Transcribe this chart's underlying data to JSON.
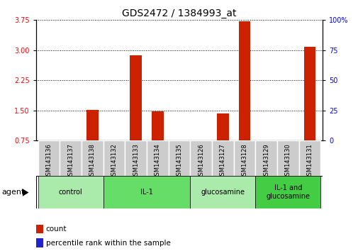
{
  "title": "GDS2472 / 1384993_at",
  "samples": [
    "GSM143136",
    "GSM143137",
    "GSM143138",
    "GSM143132",
    "GSM143133",
    "GSM143134",
    "GSM143135",
    "GSM143126",
    "GSM143127",
    "GSM143128",
    "GSM143129",
    "GSM143130",
    "GSM143131"
  ],
  "count_values": [
    0.75,
    0.75,
    1.52,
    0.75,
    2.88,
    1.48,
    0.75,
    0.75,
    1.42,
    3.72,
    0.75,
    0.75,
    3.08
  ],
  "percentile_values": [
    0.0,
    0.0,
    0.04,
    0.0,
    0.12,
    0.04,
    0.0,
    0.0,
    0.04,
    0.12,
    0.0,
    0.0,
    0.04
  ],
  "groups": [
    {
      "label": "control",
      "start": 0,
      "end": 3,
      "color": "#AAEAAA"
    },
    {
      "label": "IL-1",
      "start": 3,
      "end": 7,
      "color": "#66DD66"
    },
    {
      "label": "glucosamine",
      "start": 7,
      "end": 10,
      "color": "#AAEAAA"
    },
    {
      "label": "IL-1 and\nglucosamine",
      "start": 10,
      "end": 13,
      "color": "#44CC44"
    }
  ],
  "ylim_left": [
    0.75,
    3.75
  ],
  "ylim_right": [
    0,
    100
  ],
  "yticks_left": [
    0.75,
    1.5,
    2.25,
    3.0,
    3.75
  ],
  "yticks_right": [
    0,
    25,
    50,
    75,
    100
  ],
  "bar_color_count": "#CC2200",
  "bar_color_pct": "#2222CC",
  "bar_width": 0.55,
  "sample_box_color": "#CCCCCC",
  "title_fontsize": 10,
  "tick_fontsize": 7,
  "sample_fontsize": 6,
  "group_fontsize": 7,
  "legend_fontsize": 7.5,
  "baseline": 0.75
}
